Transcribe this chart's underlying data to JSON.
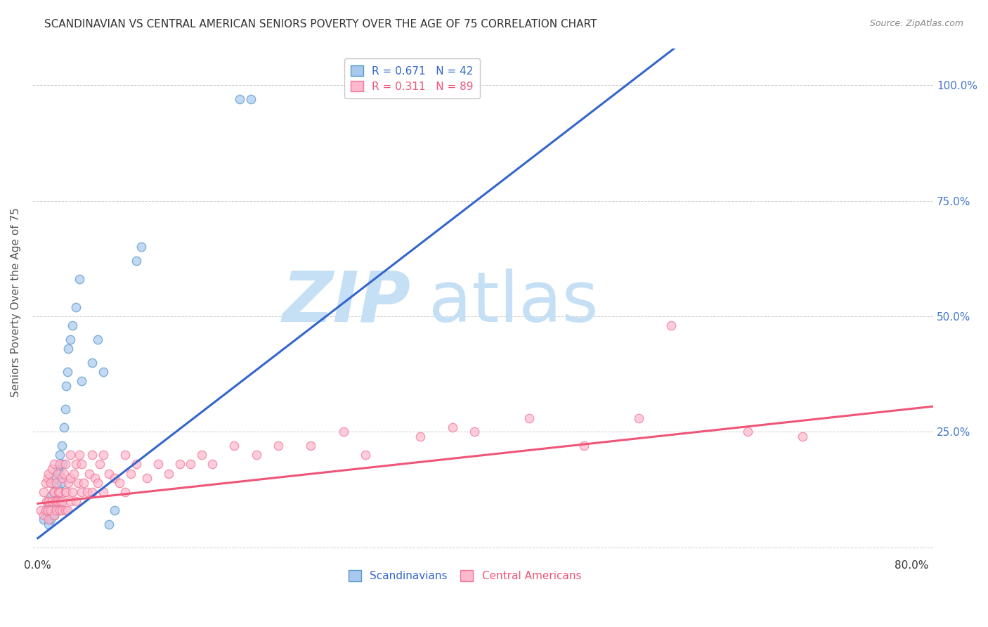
{
  "title": "SCANDINAVIAN VS CENTRAL AMERICAN SENIORS POVERTY OVER THE AGE OF 75 CORRELATION CHART",
  "source": "Source: ZipAtlas.com",
  "ylabel": "Seniors Poverty Over the Age of 75",
  "xlim": [
    -0.005,
    0.82
  ],
  "ylim": [
    -0.02,
    1.08
  ],
  "R_scand": 0.671,
  "N_scand": 42,
  "R_central": 0.311,
  "N_central": 89,
  "scand_dot_color": "#a8c8ee",
  "scand_edge_color": "#5599cc",
  "central_dot_color": "#ffb8cc",
  "central_edge_color": "#ee7799",
  "blue_line_color": "#3366cc",
  "pink_line_color": "#ee5577",
  "watermark_zip_color": "#c5dff5",
  "watermark_atlas_color": "#c5dff5",
  "background_color": "#ffffff",
  "grid_color": "#cccccc",
  "right_tick_color": "#4477cc",
  "scand_x": [
    0.005,
    0.007,
    0.008,
    0.009,
    0.01,
    0.01,
    0.012,
    0.012,
    0.013,
    0.013,
    0.015,
    0.015,
    0.015,
    0.016,
    0.017,
    0.018,
    0.018,
    0.02,
    0.02,
    0.02,
    0.022,
    0.022,
    0.023,
    0.024,
    0.025,
    0.026,
    0.027,
    0.028,
    0.03,
    0.032,
    0.035,
    0.038,
    0.04,
    0.05,
    0.055,
    0.06,
    0.065,
    0.07,
    0.09,
    0.095,
    0.185,
    0.195
  ],
  "scand_y": [
    0.06,
    0.07,
    0.08,
    0.09,
    0.05,
    0.1,
    0.06,
    0.11,
    0.07,
    0.14,
    0.07,
    0.1,
    0.15,
    0.12,
    0.08,
    0.13,
    0.17,
    0.1,
    0.16,
    0.2,
    0.14,
    0.22,
    0.18,
    0.26,
    0.3,
    0.35,
    0.38,
    0.43,
    0.45,
    0.48,
    0.52,
    0.58,
    0.36,
    0.4,
    0.45,
    0.38,
    0.05,
    0.08,
    0.62,
    0.65,
    0.97,
    0.97
  ],
  "central_x": [
    0.003,
    0.005,
    0.005,
    0.007,
    0.007,
    0.008,
    0.009,
    0.009,
    0.01,
    0.01,
    0.01,
    0.012,
    0.012,
    0.013,
    0.013,
    0.014,
    0.015,
    0.015,
    0.015,
    0.016,
    0.017,
    0.017,
    0.018,
    0.018,
    0.019,
    0.02,
    0.02,
    0.02,
    0.021,
    0.022,
    0.022,
    0.023,
    0.024,
    0.025,
    0.025,
    0.025,
    0.026,
    0.027,
    0.028,
    0.03,
    0.03,
    0.03,
    0.032,
    0.033,
    0.035,
    0.035,
    0.037,
    0.038,
    0.04,
    0.04,
    0.042,
    0.045,
    0.047,
    0.05,
    0.05,
    0.052,
    0.055,
    0.057,
    0.06,
    0.06,
    0.065,
    0.07,
    0.075,
    0.08,
    0.08,
    0.085,
    0.09,
    0.1,
    0.11,
    0.12,
    0.13,
    0.14,
    0.15,
    0.16,
    0.18,
    0.2,
    0.22,
    0.25,
    0.28,
    0.3,
    0.35,
    0.38,
    0.4,
    0.45,
    0.5,
    0.55,
    0.58,
    0.65,
    0.7
  ],
  "central_y": [
    0.08,
    0.07,
    0.12,
    0.08,
    0.14,
    0.1,
    0.08,
    0.15,
    0.06,
    0.1,
    0.16,
    0.08,
    0.14,
    0.1,
    0.17,
    0.12,
    0.07,
    0.12,
    0.18,
    0.1,
    0.08,
    0.14,
    0.1,
    0.16,
    0.12,
    0.08,
    0.12,
    0.18,
    0.1,
    0.08,
    0.15,
    0.1,
    0.16,
    0.08,
    0.12,
    0.18,
    0.12,
    0.08,
    0.14,
    0.1,
    0.15,
    0.2,
    0.12,
    0.16,
    0.1,
    0.18,
    0.14,
    0.2,
    0.12,
    0.18,
    0.14,
    0.12,
    0.16,
    0.12,
    0.2,
    0.15,
    0.14,
    0.18,
    0.12,
    0.2,
    0.16,
    0.15,
    0.14,
    0.12,
    0.2,
    0.16,
    0.18,
    0.15,
    0.18,
    0.16,
    0.18,
    0.18,
    0.2,
    0.18,
    0.22,
    0.2,
    0.22,
    0.22,
    0.25,
    0.2,
    0.24,
    0.26,
    0.25,
    0.28,
    0.22,
    0.28,
    0.48,
    0.25,
    0.24
  ],
  "blue_line_x0": 0.0,
  "blue_line_y0": 0.02,
  "blue_line_x1": 0.55,
  "blue_line_y1": 1.02,
  "pink_line_x0": 0.0,
  "pink_line_y0": 0.095,
  "pink_line_x1": 0.8,
  "pink_line_y1": 0.3
}
